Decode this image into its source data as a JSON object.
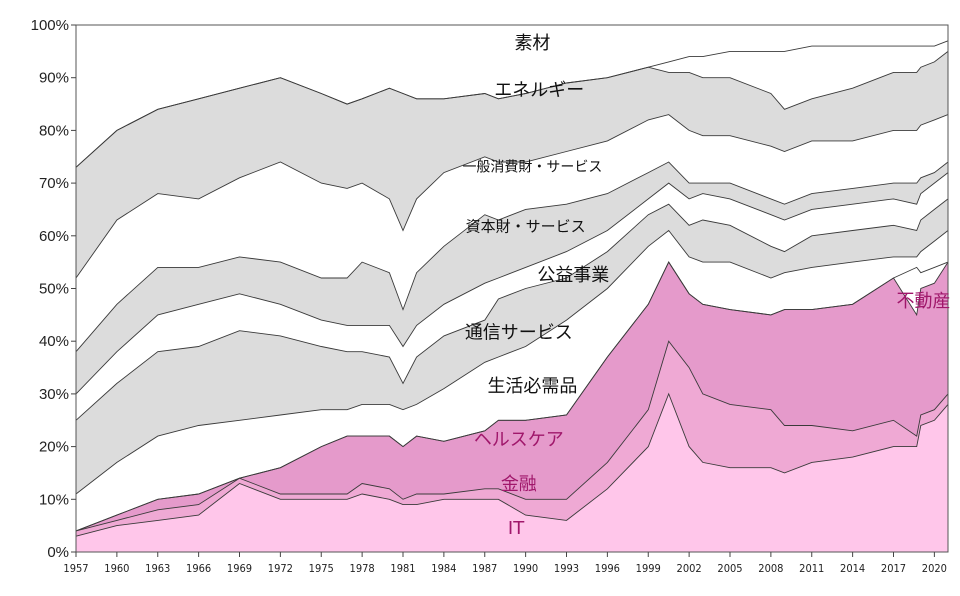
{
  "chart_data": {
    "type": "area",
    "stacked": true,
    "percent": true,
    "title": "",
    "xlabel": "",
    "ylabel": "",
    "ylim": [
      0,
      100
    ],
    "y_ticks": [
      "0%",
      "10%",
      "20%",
      "30%",
      "40%",
      "50%",
      "60%",
      "70%",
      "80%",
      "90%",
      "100%"
    ],
    "x_ticks": [
      "1957",
      "1960",
      "1963",
      "1966",
      "1969",
      "1972",
      "1975",
      "1978",
      "1981",
      "1984",
      "1987",
      "1990",
      "1993",
      "1996",
      "1999",
      "2002",
      "2005",
      "2008",
      "2011",
      "2014",
      "2017",
      "2020"
    ],
    "grid": false,
    "legend": "inline labels",
    "x": [
      1957,
      1960,
      1963,
      1966,
      1969,
      1972,
      1975,
      1976.9,
      1978,
      1980,
      1981,
      1982,
      1984,
      1987,
      1988,
      1990,
      1993,
      1996,
      1999,
      2000.5,
      2002,
      2003,
      2005,
      2008,
      2009,
      2011,
      2014,
      2017,
      2018.7,
      2019,
      2020,
      2021
    ],
    "cumulative_series": [
      {
        "name": "IT",
        "values": [
          3,
          5,
          6,
          7,
          13,
          10,
          10,
          10,
          11,
          10,
          9,
          9,
          10,
          10,
          10,
          7,
          6,
          12,
          20,
          30,
          20,
          17,
          16,
          16,
          15,
          17,
          18,
          20,
          20,
          24,
          25,
          28
        ]
      },
      {
        "name": "金融",
        "values": [
          4,
          6,
          8,
          9,
          14,
          11,
          11,
          11,
          13,
          12,
          10,
          11,
          11,
          12,
          12,
          10,
          10,
          17,
          27,
          40,
          35,
          30,
          28,
          27,
          24,
          24,
          23,
          25,
          22,
          26,
          27,
          30
        ]
      },
      {
        "name": "ヘルスケア",
        "values": [
          4,
          7,
          10,
          11,
          14,
          16,
          20,
          22,
          22,
          22,
          20,
          22,
          21,
          23,
          25,
          25,
          26,
          37,
          47,
          55,
          49,
          47,
          46,
          45,
          46,
          46,
          47,
          52,
          45,
          50,
          51,
          55
        ]
      },
      {
        "name": "不動産",
        "values": [
          4,
          7,
          10,
          11,
          14,
          16,
          20,
          22,
          22,
          22,
          20,
          22,
          21,
          23,
          25,
          25,
          26,
          37,
          47,
          55,
          49,
          47,
          46,
          45,
          46,
          46,
          47,
          52,
          54,
          53,
          54,
          55
        ]
      },
      {
        "name": "生活必需品",
        "values": [
          11,
          17,
          22,
          24,
          25,
          26,
          27,
          27,
          28,
          28,
          27,
          28,
          31,
          36,
          37,
          39,
          44,
          50,
          58,
          61,
          56,
          55,
          55,
          52,
          53,
          54,
          55,
          56,
          56,
          57,
          59,
          61
        ]
      },
      {
        "name": "通信サービス",
        "values": [
          25,
          32,
          38,
          39,
          42,
          41,
          39,
          38,
          38,
          37,
          32,
          37,
          41,
          44,
          48,
          50,
          52,
          57,
          64,
          66,
          62,
          63,
          62,
          58,
          57,
          60,
          61,
          62,
          61,
          63,
          65,
          67
        ]
      },
      {
        "name": "公益事業",
        "values": [
          30,
          38,
          45,
          47,
          49,
          47,
          44,
          43,
          43,
          43,
          39,
          43,
          47,
          51,
          52,
          54,
          57,
          61,
          67,
          70,
          67,
          68,
          67,
          64,
          63,
          65,
          66,
          67,
          66,
          68,
          70,
          72
        ]
      },
      {
        "name": "資本財・サービス",
        "values": [
          38,
          47,
          54,
          54,
          56,
          55,
          52,
          52,
          55,
          53,
          46,
          53,
          58,
          64,
          63,
          65,
          66,
          68,
          72,
          74,
          70,
          70,
          70,
          67,
          66,
          68,
          69,
          70,
          70,
          71,
          72,
          74
        ]
      },
      {
        "name": "一般消費財・サービス",
        "values": [
          52,
          63,
          68,
          67,
          71,
          74,
          70,
          69,
          70,
          67,
          61,
          67,
          72,
          75,
          74,
          74,
          76,
          78,
          82,
          83,
          80,
          79,
          79,
          77,
          76,
          78,
          78,
          80,
          80,
          81,
          82,
          83
        ]
      },
      {
        "name": "エネルギー",
        "values": [
          73,
          80,
          84,
          86,
          88,
          90,
          87,
          85,
          86,
          88,
          87,
          86,
          86,
          87,
          86,
          87,
          89,
          90,
          92,
          91,
          91,
          90,
          90,
          87,
          84,
          86,
          88,
          91,
          91,
          92,
          93,
          95
        ]
      },
      {
        "name": "素材",
        "values": [
          73,
          80,
          84,
          86,
          88,
          90,
          87,
          85,
          86,
          88,
          87,
          86,
          86,
          87,
          86,
          87,
          89,
          90,
          92,
          93,
          94,
          94,
          95,
          95,
          95,
          96,
          96,
          96,
          96,
          96,
          96,
          97
        ]
      }
    ],
    "fills": {
      "IT": "#ffc6ea",
      "金融": "#efa9d4",
      "ヘルスケア": "#e59acb",
      "不動産": "#ffffff",
      "生活必需品": "#ffffff",
      "通信サービス": "#dcdcdc",
      "公益事業": "#ffffff",
      "資本財・サービス": "#dcdcdc",
      "一般消費財・サービス": "#ffffff",
      "エネルギー": "#dcdcdc",
      "素材": "#ffffff"
    },
    "labels": [
      {
        "text": "素材",
        "x": 1990.5,
        "y": 95.4,
        "color": "#111111"
      },
      {
        "text": "エネルギー",
        "x": 1991,
        "y": 86.5,
        "color": "#111111"
      },
      {
        "text": "一般消費財・サービス",
        "x": 1990.5,
        "y": 72.2,
        "color": "#111111"
      },
      {
        "text": "資本財・サービス",
        "x": 1990,
        "y": 60.8,
        "color": "#111111"
      },
      {
        "text": "公益事業",
        "x": 1993.5,
        "y": 51.4,
        "color": "#111111"
      },
      {
        "text": "通信サービス",
        "x": 1989.5,
        "y": 40.5,
        "color": "#111111"
      },
      {
        "text": "生活必需品",
        "x": 1990.5,
        "y": 30.4,
        "color": "#111111"
      },
      {
        "text": "ヘルスケア",
        "x": 1989.5,
        "y": 20.2,
        "color": "#a0176b"
      },
      {
        "text": "金融",
        "x": 1989.5,
        "y": 11.8,
        "color": "#a0176b"
      },
      {
        "text": "IT",
        "x": 1989.3,
        "y": 3.4,
        "color": "#a0176b"
      },
      {
        "text": "不動産",
        "x": 2019.2,
        "y": 46.5,
        "color": "#a0176b"
      }
    ]
  }
}
